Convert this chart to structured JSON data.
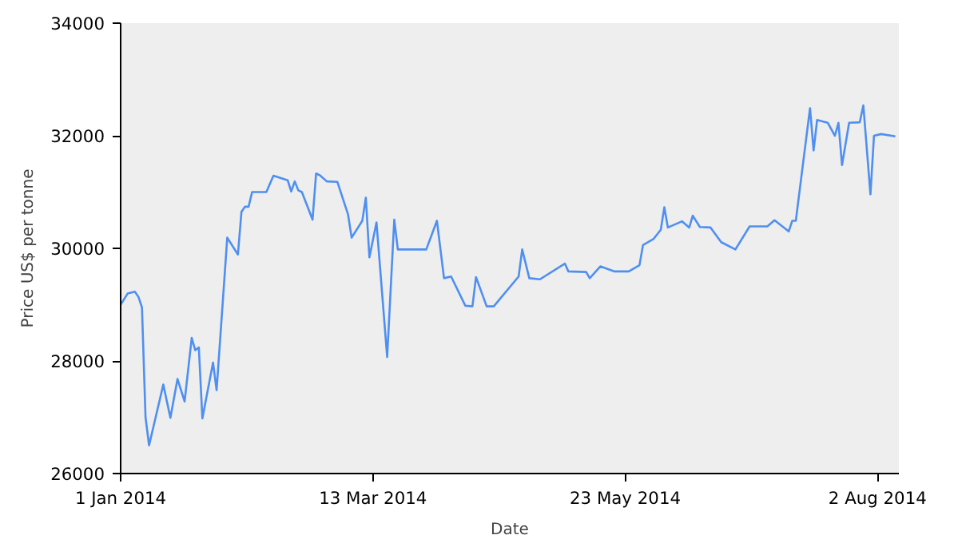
{
  "chart_data": {
    "type": "line",
    "xlabel": "Date",
    "ylabel": "Price US$ per tonne",
    "xlim": [
      "2014-01-01",
      "2014-08-08"
    ],
    "ylim": [
      26000,
      34000
    ],
    "xticks": [
      {
        "value": "2014-01-01",
        "label": "1 Jan 2014"
      },
      {
        "value": "2014-03-13",
        "label": "13 Mar 2014"
      },
      {
        "value": "2014-05-23",
        "label": "23 May 2014"
      },
      {
        "value": "2014-08-02",
        "label": "2 Aug 2014"
      }
    ],
    "yticks": [
      26000,
      28000,
      30000,
      32000,
      34000
    ],
    "grid": false,
    "marker": "none",
    "line_style": "solid",
    "series": [
      {
        "color": "#4f8ff0",
        "x": [
          "2014-01-01",
          "2014-01-03",
          "2014-01-05",
          "2014-01-06",
          "2014-01-07",
          "2014-01-08",
          "2014-01-09",
          "2014-01-13",
          "2014-01-15",
          "2014-01-17",
          "2014-01-19",
          "2014-01-21",
          "2014-01-22",
          "2014-01-23",
          "2014-01-24",
          "2014-01-27",
          "2014-01-28",
          "2014-01-31",
          "2014-02-03",
          "2014-02-04",
          "2014-02-05",
          "2014-02-06",
          "2014-02-07",
          "2014-02-11",
          "2014-02-13",
          "2014-02-17",
          "2014-02-18",
          "2014-02-19",
          "2014-02-20",
          "2014-02-21",
          "2014-02-24",
          "2014-02-25",
          "2014-02-26",
          "2014-02-28",
          "2014-03-03",
          "2014-03-06",
          "2014-03-07",
          "2014-03-10",
          "2014-03-11",
          "2014-03-12",
          "2014-03-14",
          "2014-03-17",
          "2014-03-19",
          "2014-03-20",
          "2014-03-28",
          "2014-03-31",
          "2014-04-02",
          "2014-04-04",
          "2014-04-08",
          "2014-04-10",
          "2014-04-11",
          "2014-04-14",
          "2014-04-16",
          "2014-04-23",
          "2014-04-24",
          "2014-04-26",
          "2014-04-29",
          "2014-05-06",
          "2014-05-07",
          "2014-05-12",
          "2014-05-13",
          "2014-05-16",
          "2014-05-20",
          "2014-05-24",
          "2014-05-27",
          "2014-05-28",
          "2014-05-31",
          "2014-06-02",
          "2014-06-03",
          "2014-06-04",
          "2014-06-08",
          "2014-06-10",
          "2014-06-11",
          "2014-06-13",
          "2014-06-16",
          "2014-06-19",
          "2014-06-23",
          "2014-06-27",
          "2014-07-02",
          "2014-07-04",
          "2014-07-08",
          "2014-07-09",
          "2014-07-10",
          "2014-07-14",
          "2014-07-15",
          "2014-07-16",
          "2014-07-19",
          "2014-07-21",
          "2014-07-22",
          "2014-07-23",
          "2014-07-25",
          "2014-07-28",
          "2014-07-29",
          "2014-07-31",
          "2014-08-01",
          "2014-08-03",
          "2014-08-07"
        ],
        "values": [
          29000,
          29200,
          29230,
          29140,
          28950,
          27000,
          26500,
          27580,
          26990,
          27680,
          27280,
          28410,
          28190,
          28240,
          26980,
          27970,
          27480,
          30190,
          29890,
          30650,
          30740,
          30740,
          31000,
          31000,
          31290,
          31210,
          31010,
          31190,
          31030,
          31000,
          30510,
          31330,
          31300,
          31190,
          31180,
          30600,
          30190,
          30490,
          30900,
          29840,
          30460,
          28070,
          30510,
          29980,
          29980,
          30490,
          29470,
          29500,
          28980,
          28970,
          29490,
          28970,
          28970,
          29500,
          29980,
          29470,
          29450,
          29730,
          29590,
          29580,
          29470,
          29680,
          29590,
          29590,
          29700,
          30060,
          30170,
          30330,
          30730,
          30370,
          30480,
          30370,
          30580,
          30380,
          30370,
          30110,
          29980,
          30390,
          30390,
          30500,
          30300,
          30490,
          30490,
          32490,
          31740,
          32280,
          32230,
          32000,
          32230,
          31480,
          32230,
          32240,
          32540,
          30960,
          32000,
          32030,
          31990
        ]
      }
    ]
  }
}
